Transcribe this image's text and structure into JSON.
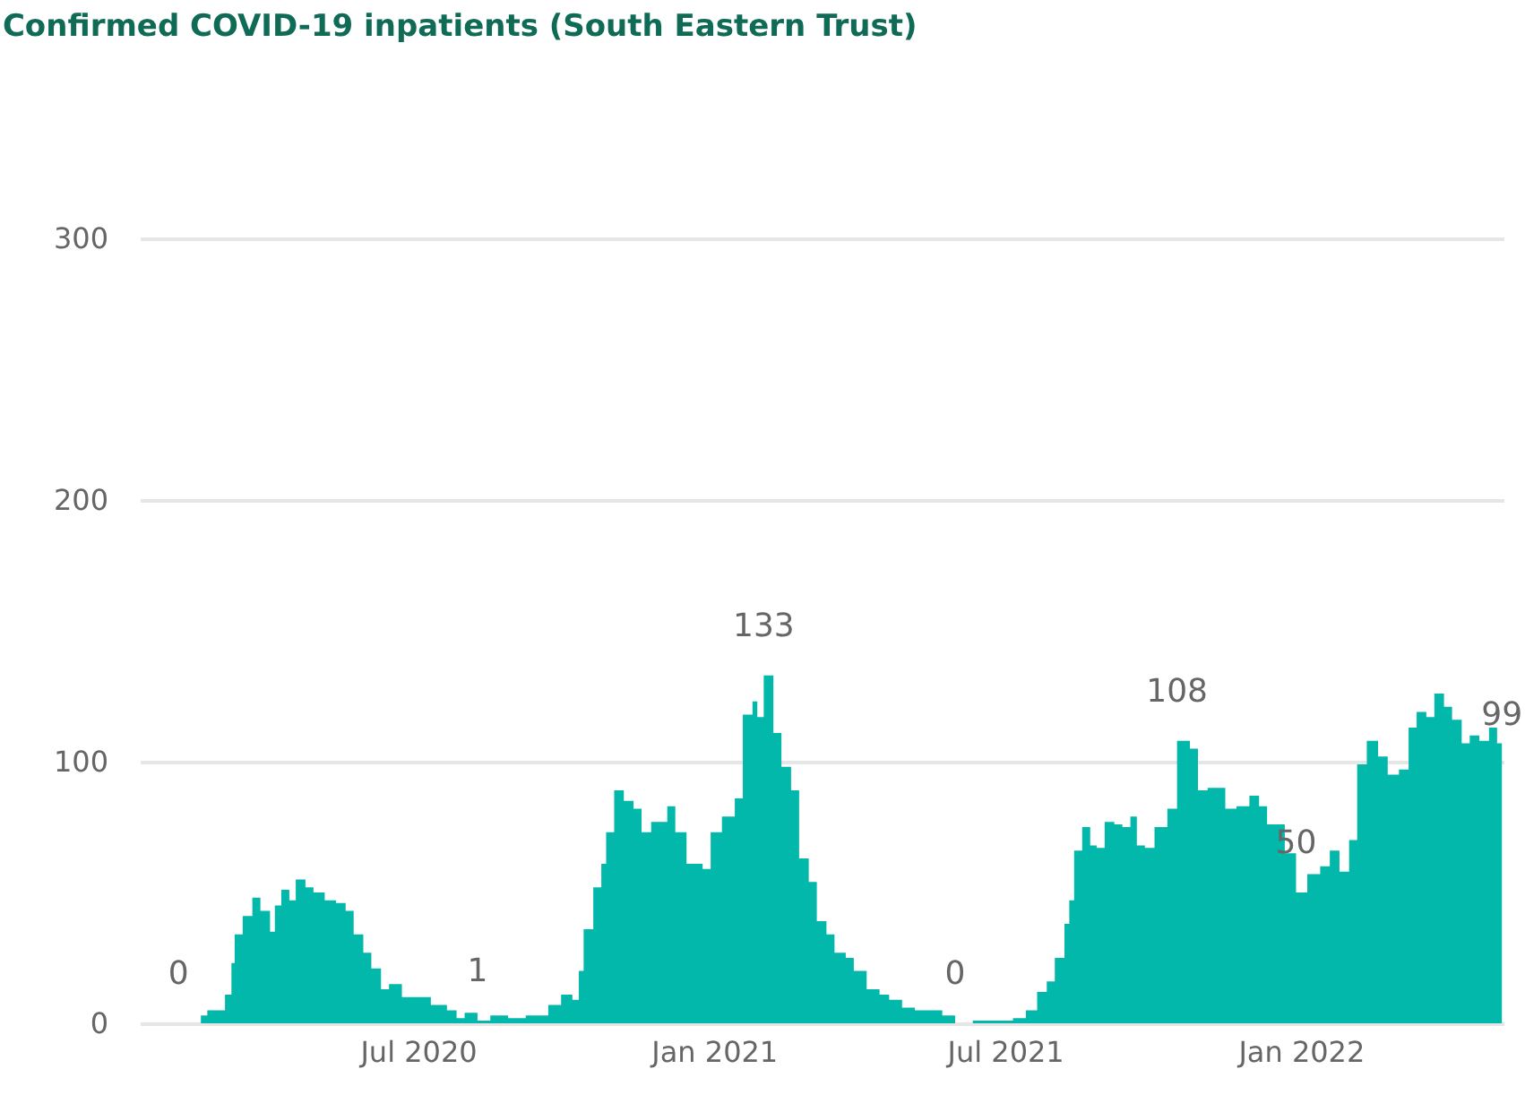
{
  "chart_data": {
    "type": "area",
    "title": "Confirmed COVID-19 inpatients (South Eastern Trust)",
    "x": [
      "2020-02-03",
      "2020-02-17",
      "2020-02-21",
      "2020-03-03",
      "2020-03-07",
      "2020-03-09",
      "2020-03-14",
      "2020-03-20",
      "2020-03-25",
      "2020-03-31",
      "2020-04-03",
      "2020-04-07",
      "2020-04-12",
      "2020-04-16",
      "2020-04-22",
      "2020-04-27",
      "2020-05-04",
      "2020-05-11",
      "2020-05-17",
      "2020-05-22",
      "2020-05-28",
      "2020-06-02",
      "2020-06-08",
      "2020-06-13",
      "2020-06-21",
      "2020-07-02",
      "2020-07-09",
      "2020-07-19",
      "2020-07-25",
      "2020-07-30",
      "2020-08-07",
      "2020-08-15",
      "2020-08-26",
      "2020-09-06",
      "2020-09-13",
      "2020-09-20",
      "2020-09-28",
      "2020-10-05",
      "2020-10-09",
      "2020-10-12",
      "2020-10-18",
      "2020-10-23",
      "2020-10-26",
      "2020-10-31",
      "2020-11-06",
      "2020-11-12",
      "2020-11-17",
      "2020-11-23",
      "2020-12-03",
      "2020-12-08",
      "2020-12-15",
      "2020-12-25",
      "2020-12-30",
      "2021-01-06",
      "2021-01-14",
      "2021-01-19",
      "2021-01-25",
      "2021-01-28",
      "2021-02-01",
      "2021-02-07",
      "2021-02-12",
      "2021-02-18",
      "2021-02-23",
      "2021-03-01",
      "2021-03-06",
      "2021-03-12",
      "2021-03-17",
      "2021-03-24",
      "2021-03-29",
      "2021-04-06",
      "2021-04-14",
      "2021-04-20",
      "2021-04-28",
      "2021-05-06",
      "2021-05-17",
      "2021-05-23",
      "2021-05-31",
      "2021-06-11",
      "2021-06-25",
      "2021-07-06",
      "2021-07-14",
      "2021-07-21",
      "2021-07-27",
      "2021-08-01",
      "2021-08-07",
      "2021-08-10",
      "2021-08-13",
      "2021-08-18",
      "2021-08-23",
      "2021-08-27",
      "2021-09-01",
      "2021-09-07",
      "2021-09-12",
      "2021-09-17",
      "2021-09-21",
      "2021-09-26",
      "2021-10-02",
      "2021-10-10",
      "2021-10-16",
      "2021-10-24",
      "2021-10-29",
      "2021-11-04",
      "2021-11-09",
      "2021-11-15",
      "2021-11-22",
      "2021-11-30",
      "2021-12-06",
      "2021-12-11",
      "2021-12-17",
      "2021-12-22",
      "2021-12-29",
      "2022-01-05",
      "2022-01-13",
      "2022-01-19",
      "2022-01-25",
      "2022-01-31",
      "2022-02-05",
      "2022-02-11",
      "2022-02-18",
      "2022-02-24",
      "2022-03-03",
      "2022-03-09",
      "2022-03-14",
      "2022-03-20",
      "2022-03-25",
      "2022-03-31",
      "2022-04-05",
      "2022-04-11",
      "2022-04-16",
      "2022-04-22",
      "2022-04-28",
      "2022-05-03",
      "2022-05-06"
    ],
    "series": [
      {
        "color": "#01b8aa",
        "values": [
          0,
          3,
          5,
          11,
          23,
          34,
          41,
          48,
          43,
          35,
          45,
          51,
          47,
          55,
          52,
          50,
          47,
          46,
          43,
          34,
          27,
          21,
          13,
          15,
          10,
          10,
          7,
          5,
          2,
          4,
          1,
          3,
          2,
          3,
          3,
          7,
          11,
          9,
          20,
          36,
          52,
          61,
          73,
          89,
          85,
          82,
          73,
          77,
          83,
          73,
          61,
          59,
          73,
          79,
          86,
          118,
          123,
          117,
          133,
          111,
          98,
          89,
          63,
          54,
          39,
          34,
          27,
          25,
          20,
          13,
          11,
          9,
          6,
          5,
          5,
          3,
          0,
          1,
          1,
          2,
          5,
          12,
          16,
          25,
          38,
          47,
          66,
          75,
          68,
          67,
          77,
          76,
          75,
          79,
          68,
          67,
          75,
          82,
          108,
          105,
          89,
          90,
          90,
          82,
          83,
          87,
          83,
          76,
          76,
          65,
          50,
          57,
          60,
          66,
          58,
          70,
          99,
          108,
          102,
          95,
          97,
          113,
          119,
          117,
          126,
          121,
          116,
          107,
          110,
          108,
          113,
          107,
          99
        ],
        "value_labels": [
          "0",
          null,
          null,
          null,
          null,
          null,
          null,
          null,
          null,
          null,
          null,
          null,
          null,
          null,
          null,
          null,
          null,
          null,
          null,
          null,
          null,
          null,
          null,
          null,
          null,
          null,
          null,
          null,
          null,
          null,
          "1",
          null,
          null,
          null,
          null,
          null,
          null,
          null,
          null,
          null,
          null,
          null,
          null,
          null,
          null,
          null,
          null,
          null,
          null,
          null,
          null,
          null,
          null,
          null,
          null,
          null,
          null,
          null,
          "133",
          null,
          null,
          null,
          null,
          null,
          null,
          null,
          null,
          null,
          null,
          null,
          null,
          null,
          null,
          null,
          null,
          null,
          "0",
          null,
          null,
          null,
          null,
          null,
          null,
          null,
          null,
          null,
          null,
          null,
          null,
          null,
          null,
          null,
          null,
          null,
          null,
          null,
          null,
          null,
          "108",
          null,
          null,
          null,
          null,
          null,
          null,
          null,
          null,
          null,
          null,
          null,
          "50",
          null,
          null,
          null,
          null,
          null,
          null,
          null,
          null,
          null,
          null,
          null,
          null,
          null,
          null,
          null,
          null,
          null,
          null,
          null,
          null,
          null,
          "99"
        ]
      }
    ],
    "xlim": [
      "2020-01-10",
      "2022-05-07"
    ],
    "xticks": [
      {
        "value": "2020-07-01",
        "label": "Jul 2020"
      },
      {
        "value": "2021-01-01",
        "label": "Jan 2021"
      },
      {
        "value": "2021-07-01",
        "label": "Jul 2021"
      },
      {
        "value": "2022-01-01",
        "label": "Jan 2022"
      }
    ],
    "ylim": [
      0,
      300
    ],
    "yticks": [
      0,
      100,
      200,
      300
    ],
    "grid": "y"
  }
}
